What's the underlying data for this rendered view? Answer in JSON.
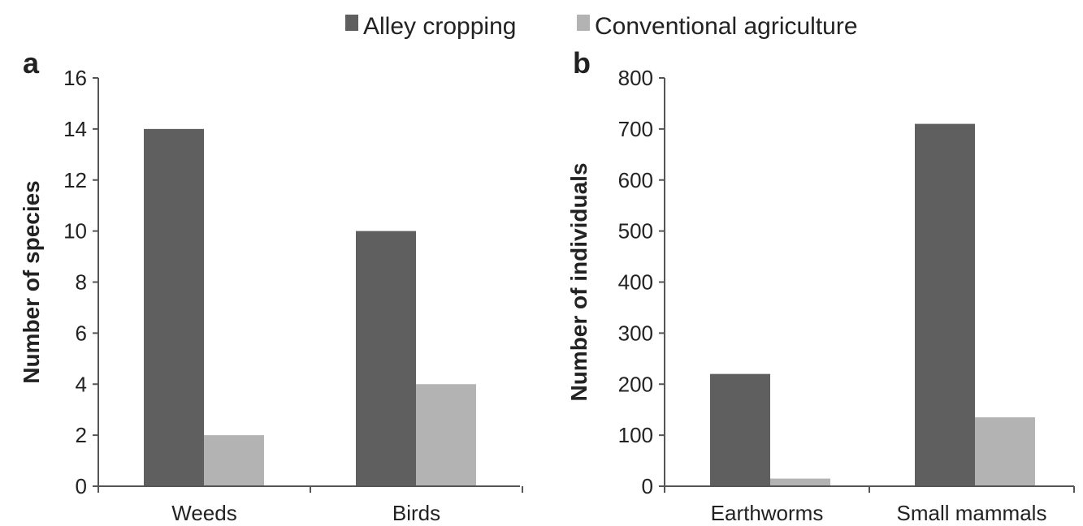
{
  "legend": {
    "items": [
      {
        "label": "Alley cropping",
        "color": "#5f5f5f"
      },
      {
        "label": "Conventional agriculture",
        "color": "#b3b3b3"
      }
    ]
  },
  "chart_data": [
    {
      "panel": "a",
      "type": "bar",
      "ylabel": "Number of species",
      "xlabel": "",
      "categories": [
        "Weeds",
        "Birds"
      ],
      "ylim": [
        0,
        16
      ],
      "yticks": [
        0,
        2,
        4,
        6,
        8,
        10,
        12,
        14,
        16
      ],
      "series": [
        {
          "name": "Alley cropping",
          "color": "#5f5f5f",
          "values": [
            14,
            10
          ]
        },
        {
          "name": "Conventional agriculture",
          "color": "#b3b3b3",
          "values": [
            2,
            4
          ]
        }
      ],
      "grid": false,
      "legend_position": "top"
    },
    {
      "panel": "b",
      "type": "bar",
      "ylabel": "Number of individuals",
      "xlabel": "",
      "categories": [
        "Earthworms",
        "Small mammals"
      ],
      "ylim": [
        0,
        800
      ],
      "yticks": [
        0,
        100,
        200,
        300,
        400,
        500,
        600,
        700,
        800
      ],
      "series": [
        {
          "name": "Alley cropping",
          "color": "#5f5f5f",
          "values": [
            220,
            710
          ]
        },
        {
          "name": "Conventional agriculture",
          "color": "#b3b3b3",
          "values": [
            15,
            135
          ]
        }
      ],
      "grid": false,
      "legend_position": "top"
    }
  ]
}
